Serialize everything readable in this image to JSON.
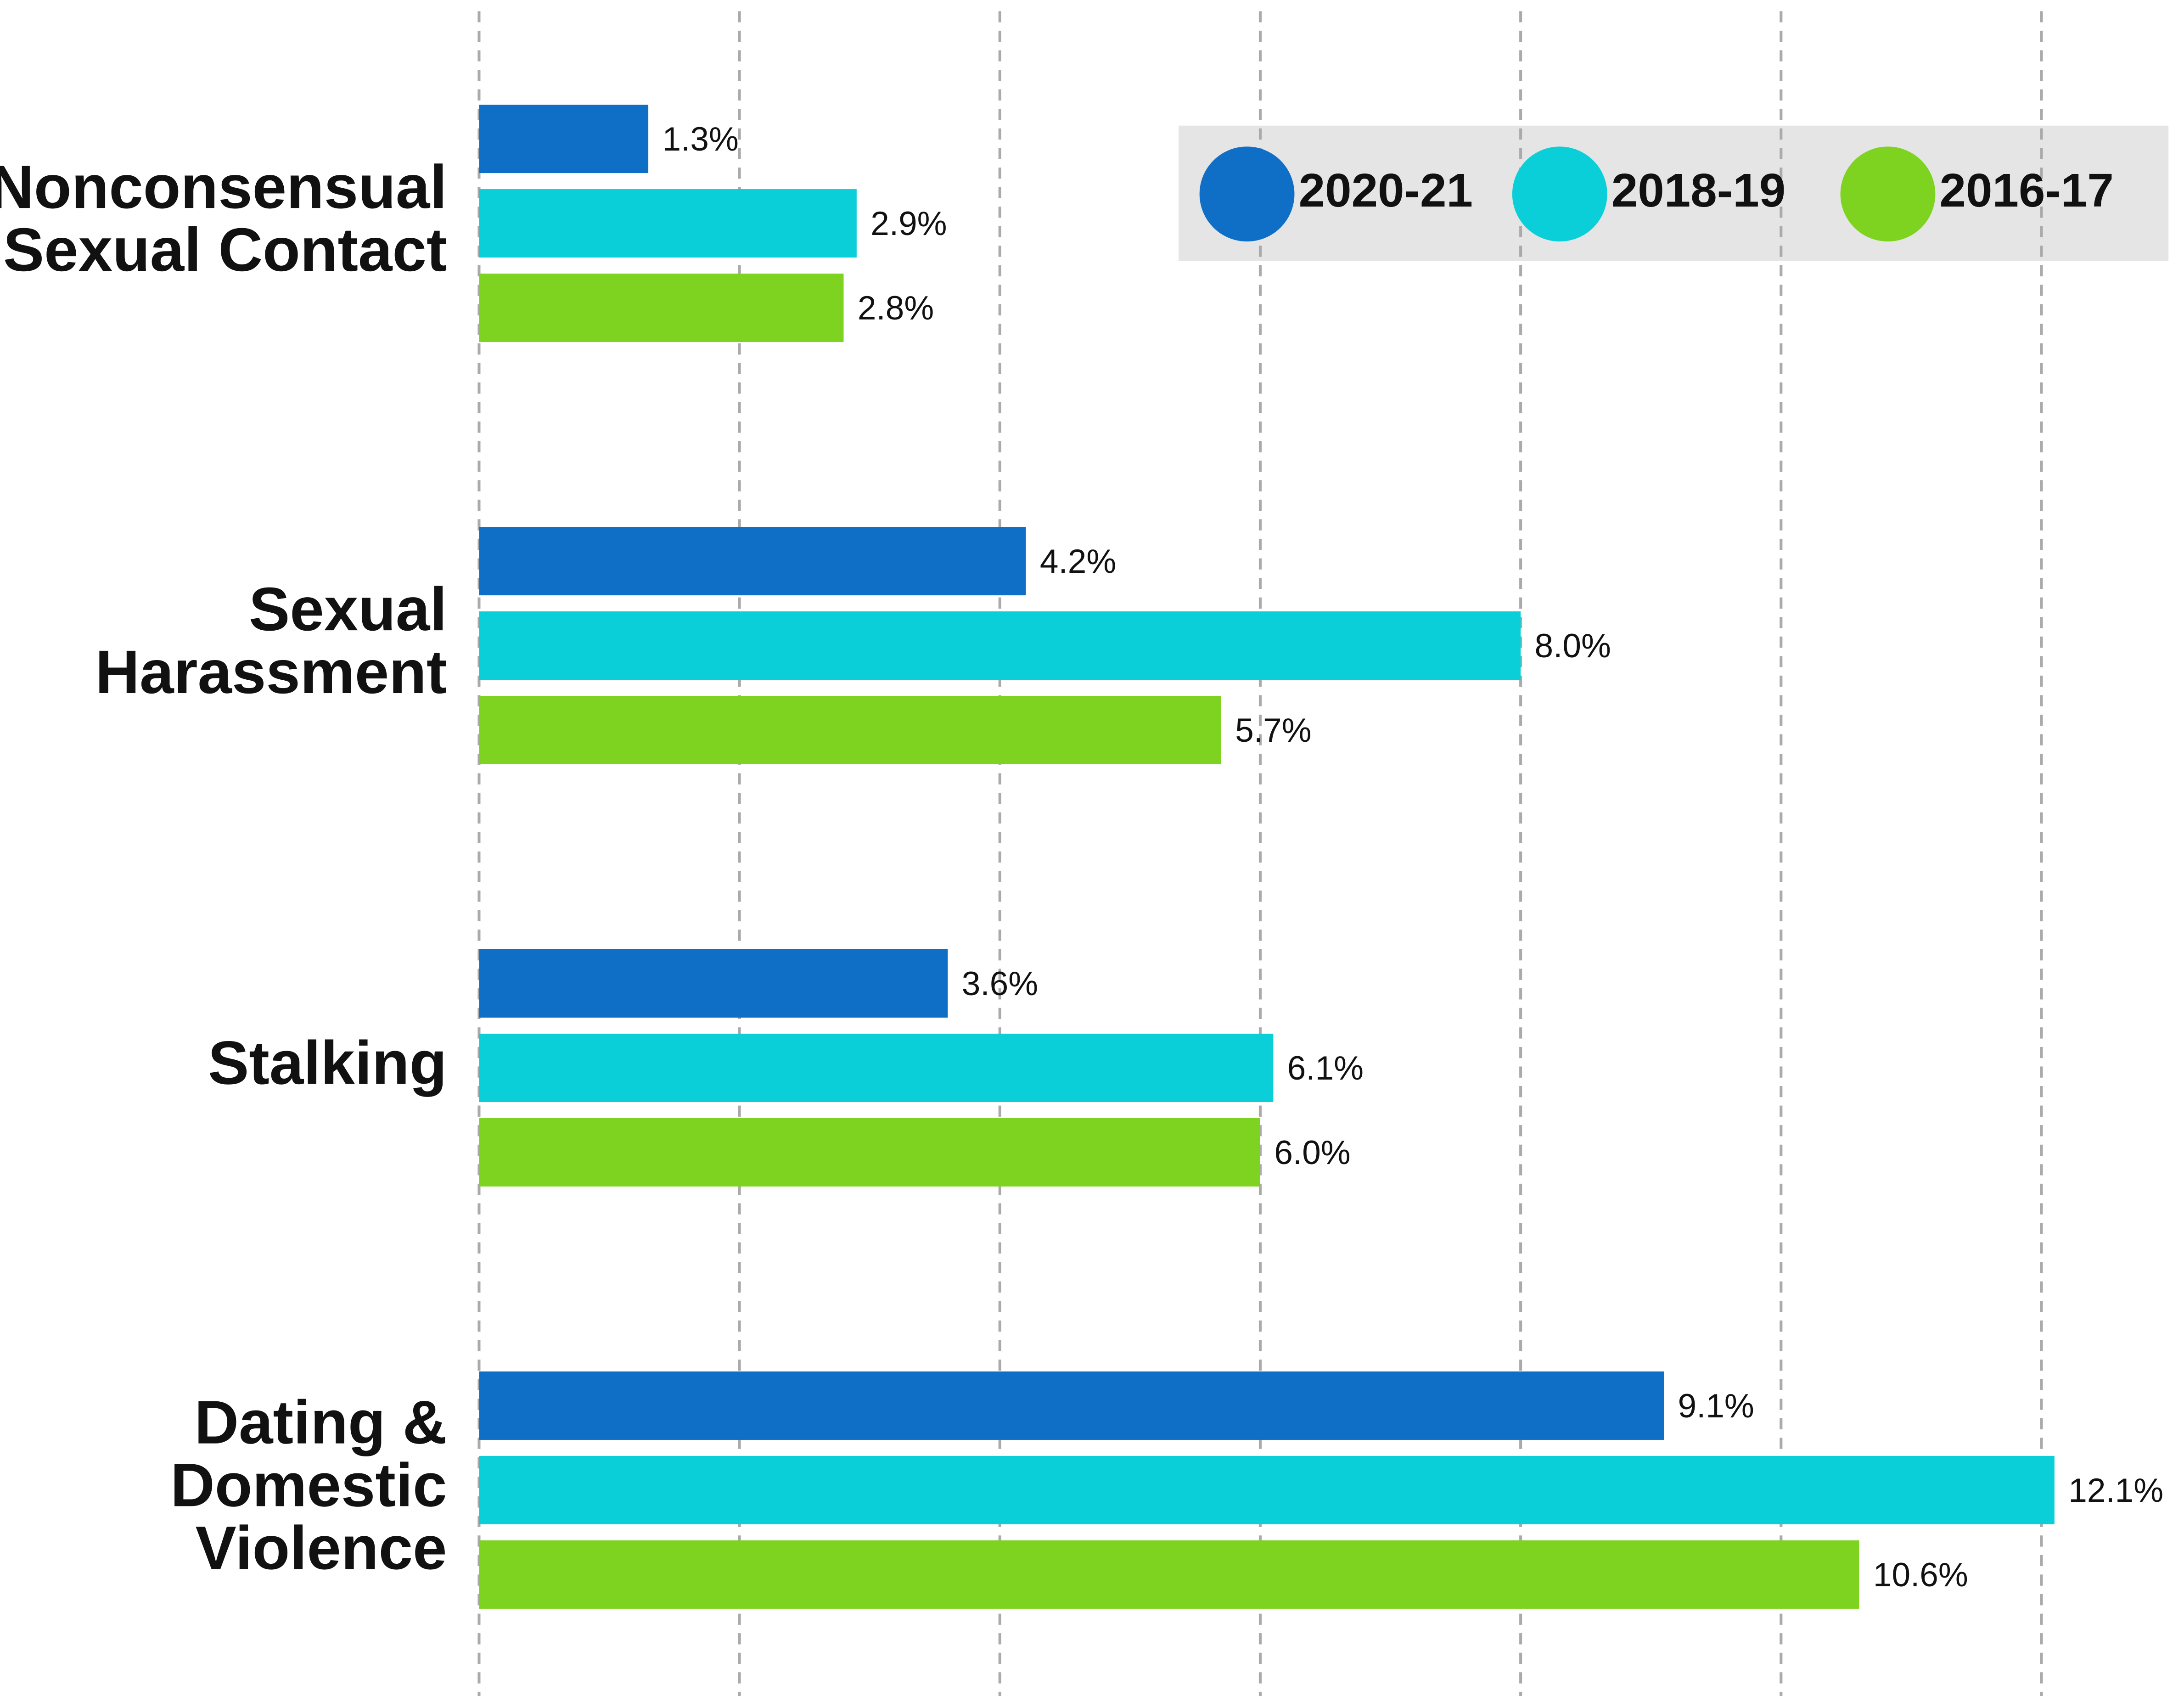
{
  "chart_data": {
    "type": "bar",
    "orientation": "horizontal",
    "categories": [
      "Nonconsensual\nSexual Contact",
      "Sexual\nHarassment",
      "Stalking",
      "Dating &\nDomestic\nViolence"
    ],
    "series": [
      {
        "name": "2020-21",
        "color": "#0f6fc6",
        "values": [
          1.3,
          4.2,
          3.6,
          9.1
        ],
        "value_labels": [
          "1.3%",
          "4.2%",
          "3.6%",
          "9.1%"
        ]
      },
      {
        "name": "2018-19",
        "color": "#0bcfd8",
        "values": [
          2.9,
          8.0,
          6.1,
          12.1
        ],
        "value_labels": [
          "2.9%",
          "8.0%",
          "6.1%",
          "12.1%"
        ]
      },
      {
        "name": "2016-17",
        "color": "#7ed321",
        "values": [
          2.8,
          5.7,
          6.0,
          10.6
        ],
        "value_labels": [
          "2.8%",
          "5.7%",
          "6.0%",
          "10.6%"
        ]
      }
    ],
    "xlim": [
      0,
      12.4
    ],
    "xticks": [
      0,
      2,
      4,
      6,
      8,
      10,
      12
    ],
    "grid": true,
    "legend": "top-right"
  }
}
